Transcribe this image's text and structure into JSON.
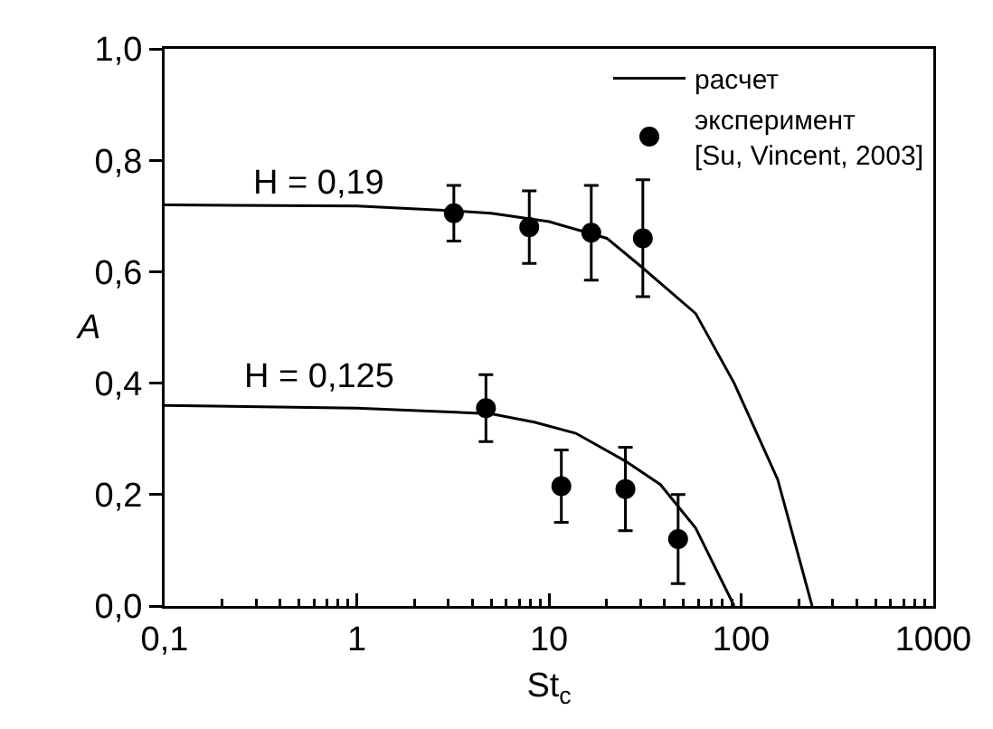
{
  "chart_data": {
    "type": "line",
    "xlabel": "St$_{c}$",
    "ylabel": "A",
    "log": "x",
    "xlim": [
      0.1,
      1000
    ],
    "ylim": [
      0,
      1.0
    ],
    "xticks": [
      {
        "value": 0.1,
        "label": "0,1"
      },
      1,
      10,
      100,
      1000
    ],
    "yticks": [
      {
        "value": 0,
        "label": "0,0"
      },
      {
        "value": 0.2,
        "label": "0,2"
      },
      {
        "value": 0.4,
        "label": "0,4"
      },
      {
        "value": 0.6,
        "label": "0,6"
      },
      {
        "value": 0.8,
        "label": "0,8"
      },
      {
        "value": 1.0,
        "label": "1,0"
      }
    ],
    "grid": false,
    "legend": "top right",
    "series": [
      {
        "name": "расчет",
        "color": "#000000",
        "marker": "none",
        "line_style": "solid",
        "x": [
          0.1,
          1,
          3,
          5,
          10,
          20,
          30,
          58,
          92,
          155,
          234
        ],
        "values": [
          0.72,
          0.718,
          0.71,
          0.705,
          0.69,
          0.66,
          0.61,
          0.525,
          0.4,
          0.227,
          0
        ]
      },
      {
        "color": "#000000",
        "marker": "none",
        "line_style": "solid",
        "x": [
          0.1,
          1,
          5,
          8.4,
          13.8,
          25,
          38,
          58,
          92
        ],
        "values": [
          0.36,
          0.355,
          0.345,
          0.33,
          0.31,
          0.26,
          0.218,
          0.14,
          0
        ]
      },
      {
        "name": "эксперимент\n[Su, Vincent, 2003]",
        "type": "scatter",
        "color": "#000000",
        "marker": "circle",
        "x": [
          3.2,
          7.9,
          16.6,
          30.8
        ],
        "values": [
          0.705,
          0.68,
          0.67,
          0.66
        ],
        "errors": [
          0.05,
          0.065,
          0.085,
          0.105
        ]
      },
      {
        "type": "scatter",
        "color": "#000000",
        "marker": "circle",
        "x": [
          4.7,
          11.6,
          25,
          47
        ],
        "values": [
          0.355,
          0.215,
          0.21,
          0.12
        ],
        "errors": [
          0.06,
          0.065,
          0.075,
          0.08
        ]
      }
    ],
    "annotations": [
      "H = 0,19",
      "H = 0,125"
    ]
  }
}
